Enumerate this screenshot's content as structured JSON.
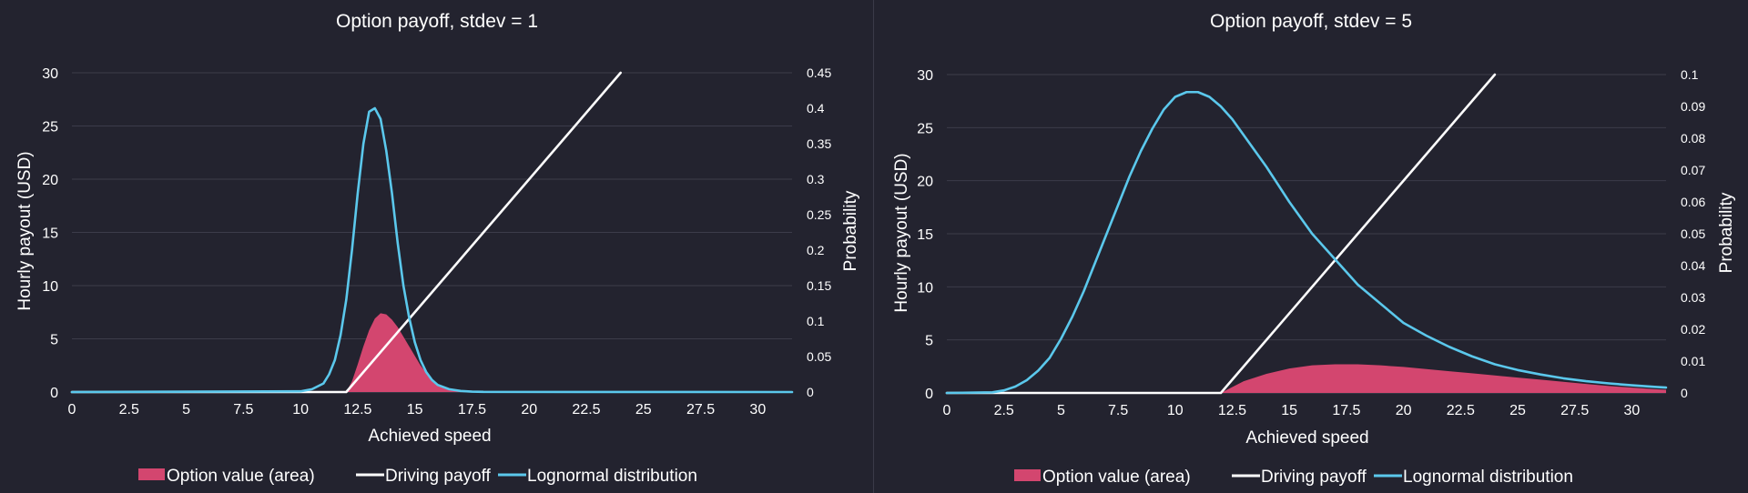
{
  "colors": {
    "background": "#23232f",
    "grid": "#3c3c4a",
    "area": "#d3466f",
    "payoff": "#ffffff",
    "lognormal": "#5bc8ec",
    "text": "#ffffff"
  },
  "chart_data": [
    {
      "type": "line",
      "title": "Option payoff, stdev = 1",
      "xlabel": "Achieved speed",
      "ylabel": "Hourly payout (USD)",
      "y2label": "Probability",
      "xlim": [
        0,
        31.5
      ],
      "ylim": [
        0,
        30
      ],
      "y2lim": [
        0,
        0.45
      ],
      "x_ticks": [
        "0",
        "2.5",
        "5",
        "7.5",
        "10",
        "12.5",
        "15",
        "17.5",
        "20",
        "22.5",
        "25",
        "27.5",
        "30"
      ],
      "y_ticks": [
        "0",
        "5",
        "10",
        "15",
        "20",
        "25",
        "30"
      ],
      "y2_ticks": [
        "0",
        "0.05",
        "0.1",
        "0.15",
        "0.2",
        "0.25",
        "0.3",
        "0.35",
        "0.4",
        "0.45"
      ],
      "grid": true,
      "legend_position": "bottom",
      "series": [
        {
          "name": "Option value (area)",
          "kind": "area",
          "axis": "left",
          "x": [
            12,
            12.25,
            12.5,
            12.75,
            13,
            13.25,
            13.5,
            13.75,
            14,
            14.25,
            14.5,
            14.75,
            15,
            15.25,
            15.5,
            15.75,
            16,
            16.25,
            16.5,
            16.75,
            17,
            17.5
          ],
          "y": [
            0,
            1.0,
            2.6,
            4.3,
            5.8,
            6.9,
            7.4,
            7.3,
            6.8,
            6.1,
            5.2,
            4.3,
            3.4,
            2.5,
            1.8,
            1.2,
            0.75,
            0.45,
            0.25,
            0.12,
            0.05,
            0
          ]
        },
        {
          "name": "Driving payoff",
          "kind": "line",
          "axis": "left",
          "x": [
            0,
            12,
            24
          ],
          "y": [
            0,
            0,
            30
          ]
        },
        {
          "name": "Lognormal distribution",
          "kind": "line",
          "axis": "right",
          "x": [
            0,
            10,
            10.5,
            11,
            11.25,
            11.5,
            11.75,
            12,
            12.25,
            12.5,
            12.75,
            13,
            13.25,
            13.5,
            13.75,
            14,
            14.25,
            14.5,
            14.75,
            15,
            15.25,
            15.5,
            15.75,
            16,
            16.5,
            17,
            17.5,
            18,
            31.5
          ],
          "y": [
            0,
            0.001,
            0.004,
            0.012,
            0.025,
            0.045,
            0.08,
            0.13,
            0.2,
            0.28,
            0.35,
            0.395,
            0.4,
            0.385,
            0.34,
            0.28,
            0.21,
            0.15,
            0.105,
            0.07,
            0.045,
            0.028,
            0.017,
            0.01,
            0.004,
            0.0015,
            0.0006,
            0.0002,
            0
          ]
        }
      ]
    },
    {
      "type": "line",
      "title": "Option payoff, stdev = 5",
      "xlabel": "Achieved speed",
      "ylabel": "Hourly payout (USD)",
      "y2label": "Probability",
      "xlim": [
        0,
        31.5
      ],
      "ylim": [
        0,
        30
      ],
      "y2lim": [
        0,
        0.1
      ],
      "x_ticks": [
        "0",
        "2.5",
        "5",
        "7.5",
        "10",
        "12.5",
        "15",
        "17.5",
        "20",
        "22.5",
        "25",
        "27.5",
        "30"
      ],
      "y_ticks": [
        "0",
        "5",
        "10",
        "15",
        "20",
        "25",
        "30"
      ],
      "y2_ticks": [
        "0",
        "0.01",
        "0.02",
        "0.03",
        "0.04",
        "0.05",
        "0.06",
        "0.07",
        "0.08",
        "0.09",
        "0.1"
      ],
      "grid": true,
      "legend_position": "bottom",
      "series": [
        {
          "name": "Option value (area)",
          "kind": "area",
          "axis": "left",
          "x": [
            12,
            13,
            14,
            15,
            16,
            17,
            18,
            19,
            20,
            21,
            22,
            23,
            24,
            25,
            26,
            27,
            28,
            29,
            30,
            31,
            31.5
          ],
          "y": [
            0,
            1.1,
            1.8,
            2.3,
            2.6,
            2.7,
            2.7,
            2.6,
            2.45,
            2.25,
            2.05,
            1.85,
            1.65,
            1.45,
            1.25,
            1.05,
            0.85,
            0.65,
            0.5,
            0.35,
            0.3
          ]
        },
        {
          "name": "Driving payoff",
          "kind": "line",
          "axis": "left",
          "x": [
            0,
            12,
            24
          ],
          "y": [
            0,
            0,
            30
          ]
        },
        {
          "name": "Lognormal distribution",
          "kind": "line",
          "axis": "right",
          "x": [
            0,
            2,
            2.5,
            3,
            3.5,
            4,
            4.5,
            5,
            5.5,
            6,
            6.5,
            7,
            7.5,
            8,
            8.5,
            9,
            9.5,
            10,
            10.5,
            11,
            11.5,
            12,
            12.5,
            13,
            13.5,
            14,
            15,
            16,
            17,
            18,
            19,
            20,
            21,
            22,
            23,
            24,
            25,
            26,
            27,
            28,
            29,
            30,
            31,
            31.5
          ],
          "y": [
            0,
            0.0002,
            0.0008,
            0.002,
            0.004,
            0.007,
            0.011,
            0.017,
            0.024,
            0.032,
            0.041,
            0.05,
            0.059,
            0.068,
            0.076,
            0.083,
            0.089,
            0.093,
            0.0945,
            0.0945,
            0.093,
            0.09,
            0.086,
            0.081,
            0.076,
            0.071,
            0.06,
            0.05,
            0.042,
            0.034,
            0.028,
            0.022,
            0.018,
            0.0145,
            0.0115,
            0.009,
            0.0072,
            0.0058,
            0.0046,
            0.0037,
            0.003,
            0.0024,
            0.0019,
            0.0017
          ]
        }
      ]
    }
  ]
}
